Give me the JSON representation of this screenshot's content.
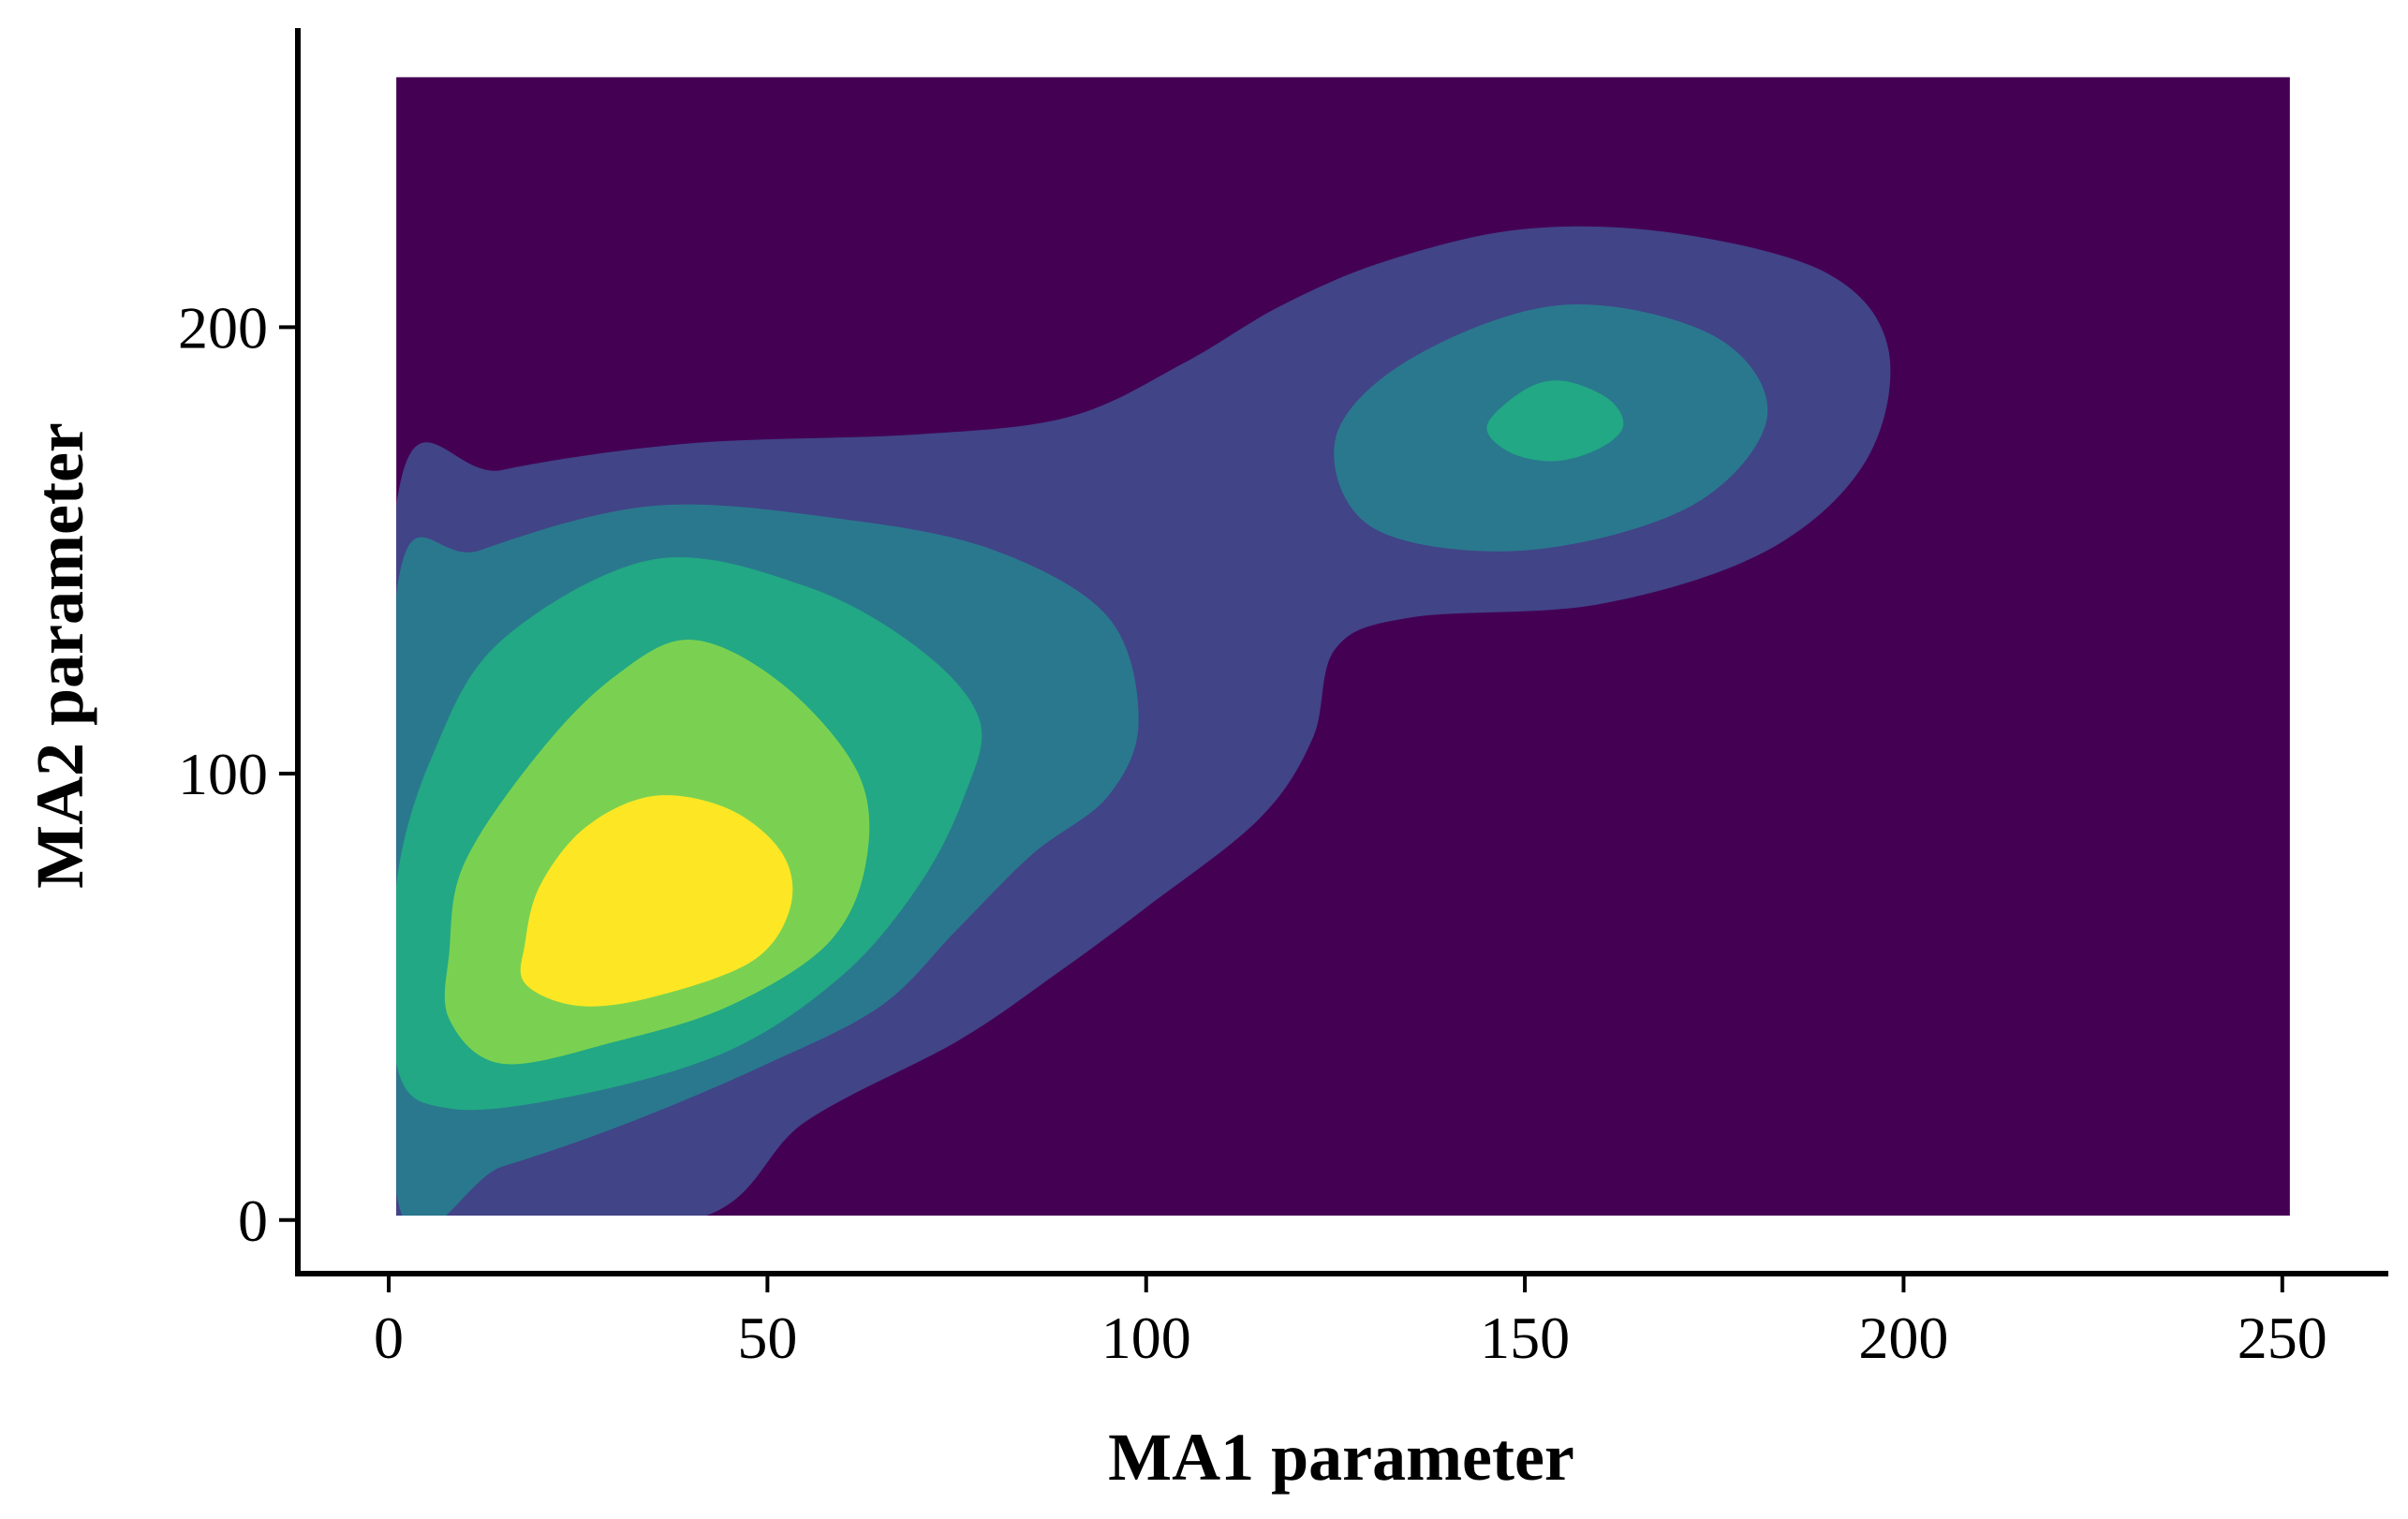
{
  "chart_data": {
    "type": "contour",
    "title": "",
    "xlabel": "MA1 parameter",
    "ylabel": "MA2 parameter",
    "xlim": [
      -12,
      264
    ],
    "ylim": [
      -12,
      267
    ],
    "xticks": [
      0,
      50,
      100,
      150,
      200,
      250
    ],
    "yticks": [
      0,
      100,
      200
    ],
    "data_extent": {
      "x": [
        1,
        251
      ],
      "y": [
        1,
        256
      ]
    },
    "grid": false,
    "legend": "none",
    "colorscale": "viridis",
    "level_colors": [
      "#440154",
      "#414487",
      "#2A788E",
      "#22A884",
      "#7AD151",
      "#FDE725"
    ],
    "density_modes": [
      {
        "x": 35,
        "y": 68
      },
      {
        "x": 155,
        "y": 180
      }
    ],
    "levels": [
      {
        "level": 1,
        "color": "#414487",
        "contour": [
          [
            1,
            160
          ],
          [
            15,
            168
          ],
          [
            40,
            174
          ],
          [
            70,
            176
          ],
          [
            90,
            180
          ],
          [
            105,
            192
          ],
          [
            118,
            205
          ],
          [
            132,
            215
          ],
          [
            150,
            222
          ],
          [
            170,
            221
          ],
          [
            190,
            212
          ],
          [
            198,
            195
          ],
          [
            195,
            170
          ],
          [
            182,
            150
          ],
          [
            160,
            138
          ],
          [
            135,
            135
          ],
          [
            125,
            128
          ],
          [
            122,
            108
          ],
          [
            115,
            90
          ],
          [
            100,
            70
          ],
          [
            88,
            55
          ],
          [
            75,
            40
          ],
          [
            55,
            22
          ],
          [
            40,
            0
          ],
          [
            1,
            0
          ]
        ]
      },
      {
        "level": 2,
        "color": "#2A788E",
        "contour": [
          [
            1,
            140
          ],
          [
            12,
            150
          ],
          [
            35,
            160
          ],
          [
            60,
            157
          ],
          [
            80,
            150
          ],
          [
            95,
            135
          ],
          [
            99,
            112
          ],
          [
            95,
            95
          ],
          [
            85,
            82
          ],
          [
            75,
            65
          ],
          [
            65,
            48
          ],
          [
            50,
            35
          ],
          [
            32,
            22
          ],
          [
            15,
            12
          ],
          [
            1,
            6
          ]
        ],
        "contour_secondary": [
          [
            125,
            175
          ],
          [
            135,
            193
          ],
          [
            155,
            205
          ],
          [
            175,
            198
          ],
          [
            182,
            180
          ],
          [
            172,
            160
          ],
          [
            150,
            150
          ],
          [
            130,
            155
          ]
        ]
      },
      {
        "level": 3,
        "color": "#22A884",
        "contour": [
          [
            1,
            75
          ],
          [
            6,
            105
          ],
          [
            15,
            130
          ],
          [
            35,
            148
          ],
          [
            55,
            142
          ],
          [
            70,
            128
          ],
          [
            78,
            112
          ],
          [
            76,
            95
          ],
          [
            70,
            75
          ],
          [
            60,
            55
          ],
          [
            45,
            38
          ],
          [
            25,
            28
          ],
          [
            8,
            25
          ],
          [
            1,
            35
          ]
        ],
        "contour_secondary": [
          [
            145,
            178
          ],
          [
            150,
            186
          ],
          [
            155,
            188
          ],
          [
            161,
            184
          ],
          [
            163,
            178
          ],
          [
            160,
            173
          ],
          [
            154,
            170
          ],
          [
            148,
            172
          ]
        ]
      },
      {
        "level": 4,
        "color": "#7AD151",
        "contour": [
          [
            8,
            60
          ],
          [
            10,
            80
          ],
          [
            20,
            105
          ],
          [
            30,
            122
          ],
          [
            40,
            130
          ],
          [
            52,
            120
          ],
          [
            62,
            100
          ],
          [
            63,
            80
          ],
          [
            58,
            62
          ],
          [
            45,
            48
          ],
          [
            30,
            40
          ],
          [
            15,
            35
          ],
          [
            8,
            45
          ]
        ]
      },
      {
        "level": 5,
        "color": "#FDE725",
        "contour": [
          [
            18,
            62
          ],
          [
            20,
            75
          ],
          [
            26,
            88
          ],
          [
            35,
            95
          ],
          [
            45,
            92
          ],
          [
            52,
            82
          ],
          [
            53,
            70
          ],
          [
            48,
            58
          ],
          [
            35,
            50
          ],
          [
            25,
            48
          ],
          [
            18,
            53
          ]
        ]
      }
    ]
  }
}
